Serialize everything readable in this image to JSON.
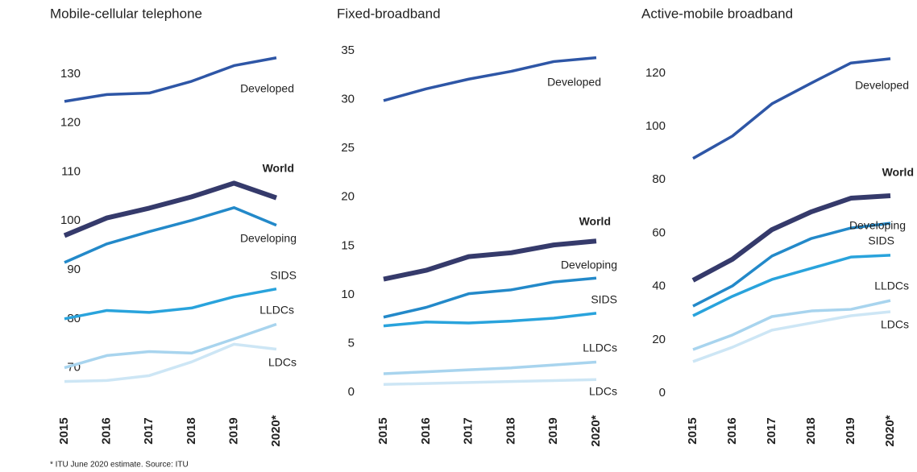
{
  "chart_data": [
    {
      "type": "line",
      "title": "Mobile-cellular telephone",
      "categories": [
        "2015",
        "2016",
        "2017",
        "2018",
        "2019",
        "2020*"
      ],
      "ylim": [
        65,
        135
      ],
      "yticks": [
        70,
        80,
        90,
        100,
        110,
        120,
        130
      ],
      "series": [
        {
          "name": "Developed",
          "color": "#2e56a6",
          "values": [
            124.4,
            125.8,
            126.1,
            128.5,
            131.7,
            133.3
          ]
        },
        {
          "name": "World",
          "color": "#353a6b",
          "values": [
            97,
            100.6,
            102.6,
            104.9,
            107.7,
            104.7
          ]
        },
        {
          "name": "Developing",
          "color": "#2389c9",
          "values": [
            91.5,
            95.3,
            97.8,
            100.1,
            102.7,
            99.1
          ]
        },
        {
          "name": "SIDS",
          "color": "#29a3dc",
          "values": [
            80,
            81.7,
            81.3,
            82.2,
            84.5,
            86.1
          ]
        },
        {
          "name": "LLDCs",
          "color": "#a8d4ee",
          "values": [
            70,
            72.5,
            73.3,
            73,
            75.9,
            78.9
          ]
        },
        {
          "name": "LDCs",
          "color": "#cde6f5",
          "values": [
            67.2,
            67.4,
            68.4,
            71.2,
            74.8,
            73.8
          ]
        }
      ]
    },
    {
      "type": "line",
      "title": "Fixed-broadband",
      "categories": [
        "2015",
        "2016",
        "2017",
        "2018",
        "2019",
        "2020*"
      ],
      "ylim": [
        0,
        36
      ],
      "yticks": [
        0,
        5,
        10,
        15,
        20,
        25,
        30,
        35
      ],
      "series": [
        {
          "name": "Developed",
          "color": "#2e56a6",
          "values": [
            29.9,
            31.1,
            32.1,
            32.9,
            33.9,
            34.3
          ]
        },
        {
          "name": "World",
          "color": "#353a6b",
          "values": [
            11.6,
            12.5,
            13.9,
            14.3,
            15.1,
            15.5
          ]
        },
        {
          "name": "Developing",
          "color": "#2389c9",
          "values": [
            7.7,
            8.7,
            10.1,
            10.5,
            11.3,
            11.7
          ]
        },
        {
          "name": "SIDS",
          "color": "#29a3dc",
          "values": [
            6.8,
            7.2,
            7.1,
            7.3,
            7.6,
            8.1
          ]
        },
        {
          "name": "LLDCs",
          "color": "#a8d4ee",
          "values": [
            1.9,
            2.1,
            2.3,
            2.5,
            2.8,
            3.1
          ]
        },
        {
          "name": "LDCs",
          "color": "#cde6f5",
          "values": [
            0.8,
            0.9,
            1,
            1.1,
            1.2,
            1.3
          ]
        }
      ]
    },
    {
      "type": "line",
      "title": "Active-mobile broadband",
      "categories": [
        "2015",
        "2016",
        "2017",
        "2018",
        "2019",
        "2020*"
      ],
      "ylim": [
        0,
        128
      ],
      "yticks": [
        0,
        20,
        40,
        60,
        80,
        100,
        120
      ],
      "series": [
        {
          "name": "Developed",
          "color": "#2e56a6",
          "values": [
            88,
            96.4,
            108.5,
            116.3,
            123.8,
            125.4
          ]
        },
        {
          "name": "World",
          "color": "#353a6b",
          "values": [
            42.3,
            50.2,
            61.3,
            68,
            73.1,
            74
          ]
        },
        {
          "name": "Developing",
          "color": "#2389c9",
          "values": [
            32.6,
            40.2,
            51.4,
            58,
            61.9,
            63.7
          ]
        },
        {
          "name": "SIDS",
          "color": "#29a3dc",
          "values": [
            29,
            36.3,
            42.6,
            46.8,
            51,
            51.7
          ]
        },
        {
          "name": "LLDCs",
          "color": "#a8d4ee",
          "values": [
            16.3,
            21.8,
            28.7,
            30.8,
            31.4,
            34.7
          ]
        },
        {
          "name": "LDCs",
          "color": "#cde6f5",
          "values": [
            11.8,
            17.2,
            23.6,
            26.3,
            29,
            30.5
          ]
        }
      ]
    }
  ],
  "footnote": "* ITU June 2020 estimate. Source: ITU"
}
